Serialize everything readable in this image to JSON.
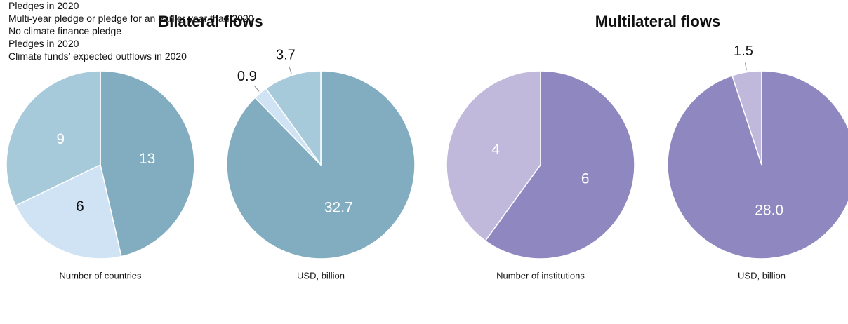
{
  "chart_data": [
    {
      "type": "pie",
      "title": "Bilateral flows",
      "categories": [
        "Pledges in 2020",
        "Multi-year pledge or pledge for an earlier year than 2020",
        "No climate finance pledge"
      ],
      "colors": [
        "#82adc0",
        "#cfe3f5",
        "#a7cadb"
      ],
      "pies": [
        {
          "xlabel": "Number of countries",
          "values": [
            13,
            6,
            9
          ]
        },
        {
          "xlabel": "USD, billion",
          "values": [
            32.7,
            0.9,
            3.7
          ]
        }
      ]
    },
    {
      "type": "pie",
      "title": "Multilateral flows",
      "categories": [
        "Pledges in 2020",
        "Climate funds’ expected outflows in 2020"
      ],
      "colors": [
        "#8f88c0",
        "#c1b9dc"
      ],
      "pies": [
        {
          "xlabel": "Number of institutions",
          "values": [
            6,
            4
          ]
        },
        {
          "xlabel": "USD, billion",
          "values": [
            28,
            1.5
          ],
          "value_labels": [
            "28.0",
            "1.5"
          ]
        }
      ]
    }
  ]
}
